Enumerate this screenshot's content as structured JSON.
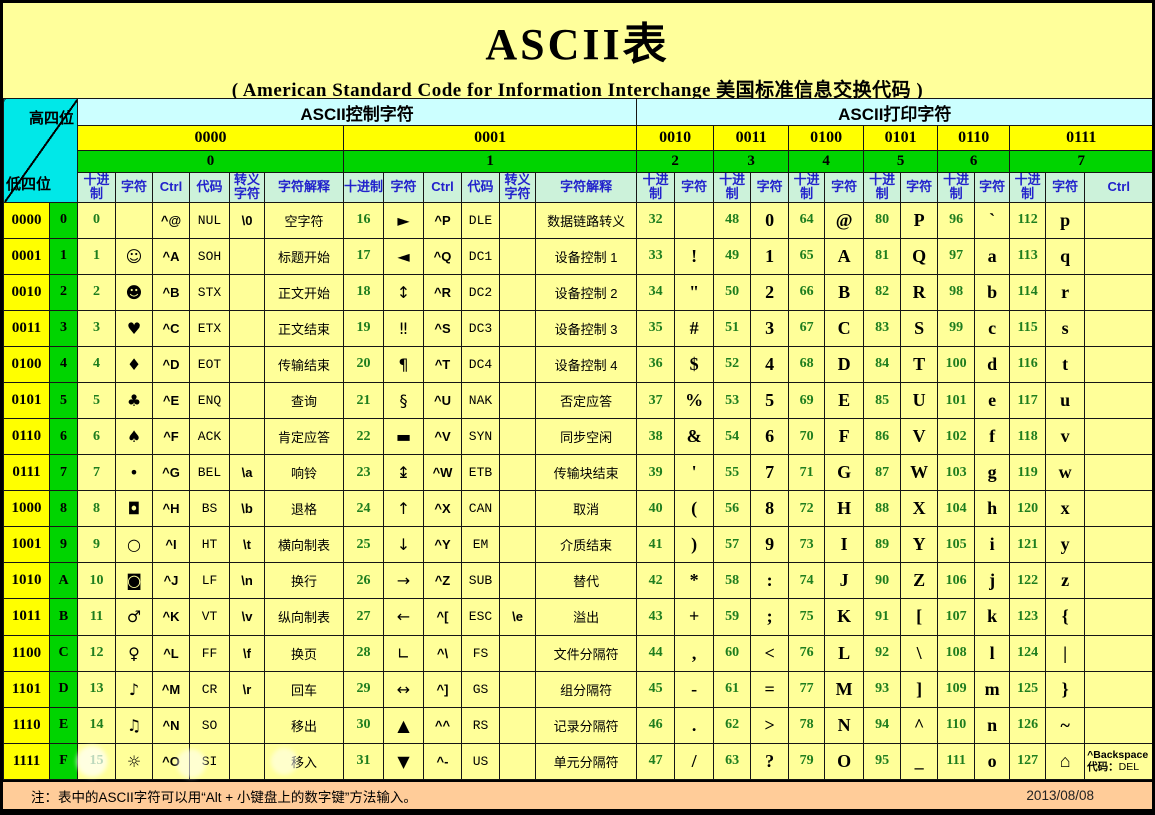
{
  "title": "ASCII表",
  "subtitle": "( American Standard Code for Information Interchange  美国标准信息交换代码 )",
  "corner": {
    "top": "高四位",
    "bottom": "低四位"
  },
  "sections": {
    "control": "ASCII控制字符",
    "print": "ASCII打印字符"
  },
  "high": [
    {
      "bin": "0000",
      "dec": "0"
    },
    {
      "bin": "0001",
      "dec": "1"
    },
    {
      "bin": "0010",
      "dec": "2"
    },
    {
      "bin": "0011",
      "dec": "3"
    },
    {
      "bin": "0100",
      "dec": "4"
    },
    {
      "bin": "0101",
      "dec": "5"
    },
    {
      "bin": "0110",
      "dec": "6"
    },
    {
      "bin": "0111",
      "dec": "7"
    }
  ],
  "col_headers": {
    "dec": "十进制",
    "char": "字符",
    "ctrl": "Ctrl",
    "code": "代码",
    "esc": "转义字符",
    "desc": "字符解释"
  },
  "rows": [
    {
      "bin": "0000",
      "hex": "0",
      "g0": {
        "dec": "0",
        "char": "",
        "ctrl": "^@",
        "code": "NUL",
        "esc": "\\0",
        "desc": "空字符"
      },
      "g1": {
        "dec": "16",
        "char": "►",
        "ctrl": "^P",
        "code": "DLE",
        "esc": "",
        "desc": "数据链路转义"
      },
      "p": [
        {
          "dec": "32",
          "char": ""
        },
        {
          "dec": "48",
          "char": "0"
        },
        {
          "dec": "64",
          "char": "@"
        },
        {
          "dec": "80",
          "char": "P"
        },
        {
          "dec": "96",
          "char": "`"
        },
        {
          "dec": "112",
          "char": "p"
        }
      ]
    },
    {
      "bin": "0001",
      "hex": "1",
      "g0": {
        "dec": "1",
        "char": "☺",
        "ctrl": "^A",
        "code": "SOH",
        "esc": "",
        "desc": "标题开始"
      },
      "g1": {
        "dec": "17",
        "char": "◄",
        "ctrl": "^Q",
        "code": "DC1",
        "esc": "",
        "desc": "设备控制 1"
      },
      "p": [
        {
          "dec": "33",
          "char": "!"
        },
        {
          "dec": "49",
          "char": "1"
        },
        {
          "dec": "65",
          "char": "A"
        },
        {
          "dec": "81",
          "char": "Q"
        },
        {
          "dec": "97",
          "char": "a"
        },
        {
          "dec": "113",
          "char": "q"
        }
      ]
    },
    {
      "bin": "0010",
      "hex": "2",
      "g0": {
        "dec": "2",
        "char": "☻",
        "ctrl": "^B",
        "code": "STX",
        "esc": "",
        "desc": "正文开始"
      },
      "g1": {
        "dec": "18",
        "char": "↕",
        "ctrl": "^R",
        "code": "DC2",
        "esc": "",
        "desc": "设备控制 2"
      },
      "p": [
        {
          "dec": "34",
          "char": "\""
        },
        {
          "dec": "50",
          "char": "2"
        },
        {
          "dec": "66",
          "char": "B"
        },
        {
          "dec": "82",
          "char": "R"
        },
        {
          "dec": "98",
          "char": "b"
        },
        {
          "dec": "114",
          "char": "r"
        }
      ]
    },
    {
      "bin": "0011",
      "hex": "3",
      "g0": {
        "dec": "3",
        "char": "♥",
        "ctrl": "^C",
        "code": "ETX",
        "esc": "",
        "desc": "正文结束"
      },
      "g1": {
        "dec": "19",
        "char": "‼",
        "ctrl": "^S",
        "code": "DC3",
        "esc": "",
        "desc": "设备控制 3"
      },
      "p": [
        {
          "dec": "35",
          "char": "#"
        },
        {
          "dec": "51",
          "char": "3"
        },
        {
          "dec": "67",
          "char": "C"
        },
        {
          "dec": "83",
          "char": "S"
        },
        {
          "dec": "99",
          "char": "c"
        },
        {
          "dec": "115",
          "char": "s"
        }
      ]
    },
    {
      "bin": "0100",
      "hex": "4",
      "g0": {
        "dec": "4",
        "char": "♦",
        "ctrl": "^D",
        "code": "EOT",
        "esc": "",
        "desc": "传输结束"
      },
      "g1": {
        "dec": "20",
        "char": "¶",
        "ctrl": "^T",
        "code": "DC4",
        "esc": "",
        "desc": "设备控制 4"
      },
      "p": [
        {
          "dec": "36",
          "char": "$"
        },
        {
          "dec": "52",
          "char": "4"
        },
        {
          "dec": "68",
          "char": "D"
        },
        {
          "dec": "84",
          "char": "T"
        },
        {
          "dec": "100",
          "char": "d"
        },
        {
          "dec": "116",
          "char": "t"
        }
      ]
    },
    {
      "bin": "0101",
      "hex": "5",
      "g0": {
        "dec": "5",
        "char": "♣",
        "ctrl": "^E",
        "code": "ENQ",
        "esc": "",
        "desc": "查询"
      },
      "g1": {
        "dec": "21",
        "char": "§",
        "ctrl": "^U",
        "code": "NAK",
        "esc": "",
        "desc": "否定应答"
      },
      "p": [
        {
          "dec": "37",
          "char": "%"
        },
        {
          "dec": "53",
          "char": "5"
        },
        {
          "dec": "69",
          "char": "E"
        },
        {
          "dec": "85",
          "char": "U"
        },
        {
          "dec": "101",
          "char": "e"
        },
        {
          "dec": "117",
          "char": "u"
        }
      ]
    },
    {
      "bin": "0110",
      "hex": "6",
      "g0": {
        "dec": "6",
        "char": "♠",
        "ctrl": "^F",
        "code": "ACK",
        "esc": "",
        "desc": "肯定应答"
      },
      "g1": {
        "dec": "22",
        "char": "▬",
        "ctrl": "^V",
        "code": "SYN",
        "esc": "",
        "desc": "同步空闲"
      },
      "p": [
        {
          "dec": "38",
          "char": "&"
        },
        {
          "dec": "54",
          "char": "6"
        },
        {
          "dec": "70",
          "char": "F"
        },
        {
          "dec": "86",
          "char": "V"
        },
        {
          "dec": "102",
          "char": "f"
        },
        {
          "dec": "118",
          "char": "v"
        }
      ]
    },
    {
      "bin": "0111",
      "hex": "7",
      "g0": {
        "dec": "7",
        "char": "•",
        "ctrl": "^G",
        "code": "BEL",
        "esc": "\\a",
        "desc": "响铃"
      },
      "g1": {
        "dec": "23",
        "char": "↨",
        "ctrl": "^W",
        "code": "ETB",
        "esc": "",
        "desc": "传输块结束"
      },
      "p": [
        {
          "dec": "39",
          "char": "'"
        },
        {
          "dec": "55",
          "char": "7"
        },
        {
          "dec": "71",
          "char": "G"
        },
        {
          "dec": "87",
          "char": "W"
        },
        {
          "dec": "103",
          "char": "g"
        },
        {
          "dec": "119",
          "char": "w"
        }
      ]
    },
    {
      "bin": "1000",
      "hex": "8",
      "g0": {
        "dec": "8",
        "char": "◘",
        "ctrl": "^H",
        "code": "BS",
        "esc": "\\b",
        "desc": "退格"
      },
      "g1": {
        "dec": "24",
        "char": "↑",
        "ctrl": "^X",
        "code": "CAN",
        "esc": "",
        "desc": "取消"
      },
      "p": [
        {
          "dec": "40",
          "char": "("
        },
        {
          "dec": "56",
          "char": "8"
        },
        {
          "dec": "72",
          "char": "H"
        },
        {
          "dec": "88",
          "char": "X"
        },
        {
          "dec": "104",
          "char": "h"
        },
        {
          "dec": "120",
          "char": "x"
        }
      ]
    },
    {
      "bin": "1001",
      "hex": "9",
      "g0": {
        "dec": "9",
        "char": "○",
        "ctrl": "^I",
        "code": "HT",
        "esc": "\\t",
        "desc": "横向制表"
      },
      "g1": {
        "dec": "25",
        "char": "↓",
        "ctrl": "^Y",
        "code": "EM",
        "esc": "",
        "desc": "介质结束"
      },
      "p": [
        {
          "dec": "41",
          "char": ")"
        },
        {
          "dec": "57",
          "char": "9"
        },
        {
          "dec": "73",
          "char": "I"
        },
        {
          "dec": "89",
          "char": "Y"
        },
        {
          "dec": "105",
          "char": "i"
        },
        {
          "dec": "121",
          "char": "y"
        }
      ]
    },
    {
      "bin": "1010",
      "hex": "A",
      "g0": {
        "dec": "10",
        "char": "◙",
        "ctrl": "^J",
        "code": "LF",
        "esc": "\\n",
        "desc": "换行"
      },
      "g1": {
        "dec": "26",
        "char": "→",
        "ctrl": "^Z",
        "code": "SUB",
        "esc": "",
        "desc": "替代"
      },
      "p": [
        {
          "dec": "42",
          "char": "*"
        },
        {
          "dec": "58",
          "char": ":"
        },
        {
          "dec": "74",
          "char": "J"
        },
        {
          "dec": "90",
          "char": "Z"
        },
        {
          "dec": "106",
          "char": "j"
        },
        {
          "dec": "122",
          "char": "z"
        }
      ]
    },
    {
      "bin": "1011",
      "hex": "B",
      "g0": {
        "dec": "11",
        "char": "♂",
        "ctrl": "^K",
        "code": "VT",
        "esc": "\\v",
        "desc": "纵向制表"
      },
      "g1": {
        "dec": "27",
        "char": "←",
        "ctrl": "^[",
        "code": "ESC",
        "esc": "\\e",
        "desc": "溢出"
      },
      "p": [
        {
          "dec": "43",
          "char": "+"
        },
        {
          "dec": "59",
          "char": ";"
        },
        {
          "dec": "75",
          "char": "K"
        },
        {
          "dec": "91",
          "char": "["
        },
        {
          "dec": "107",
          "char": "k"
        },
        {
          "dec": "123",
          "char": "{"
        }
      ]
    },
    {
      "bin": "1100",
      "hex": "C",
      "g0": {
        "dec": "12",
        "char": "♀",
        "ctrl": "^L",
        "code": "FF",
        "esc": "\\f",
        "desc": "换页"
      },
      "g1": {
        "dec": "28",
        "char": "∟",
        "ctrl": "^\\",
        "code": "FS",
        "esc": "",
        "desc": "文件分隔符"
      },
      "p": [
        {
          "dec": "44",
          "char": ","
        },
        {
          "dec": "60",
          "char": "<"
        },
        {
          "dec": "76",
          "char": "L"
        },
        {
          "dec": "92",
          "char": "\\"
        },
        {
          "dec": "108",
          "char": "l"
        },
        {
          "dec": "124",
          "char": "|"
        }
      ]
    },
    {
      "bin": "1101",
      "hex": "D",
      "g0": {
        "dec": "13",
        "char": "♪",
        "ctrl": "^M",
        "code": "CR",
        "esc": "\\r",
        "desc": "回车"
      },
      "g1": {
        "dec": "29",
        "char": "↔",
        "ctrl": "^]",
        "code": "GS",
        "esc": "",
        "desc": "组分隔符"
      },
      "p": [
        {
          "dec": "45",
          "char": "-"
        },
        {
          "dec": "61",
          "char": "="
        },
        {
          "dec": "77",
          "char": "M"
        },
        {
          "dec": "93",
          "char": "]"
        },
        {
          "dec": "109",
          "char": "m"
        },
        {
          "dec": "125",
          "char": "}"
        }
      ]
    },
    {
      "bin": "1110",
      "hex": "E",
      "g0": {
        "dec": "14",
        "char": "♫",
        "ctrl": "^N",
        "code": "SO",
        "esc": "",
        "desc": "移出"
      },
      "g1": {
        "dec": "30",
        "char": "▲",
        "ctrl": "^^",
        "code": "RS",
        "esc": "",
        "desc": "记录分隔符"
      },
      "p": [
        {
          "dec": "46",
          "char": "."
        },
        {
          "dec": "62",
          "char": ">"
        },
        {
          "dec": "78",
          "char": "N"
        },
        {
          "dec": "94",
          "char": "^"
        },
        {
          "dec": "110",
          "char": "n"
        },
        {
          "dec": "126",
          "char": "~"
        }
      ]
    },
    {
      "bin": "1111",
      "hex": "F",
      "g0": {
        "dec": "15",
        "char": "☼",
        "ctrl": "^O",
        "code": "SI",
        "esc": "",
        "desc": "移入"
      },
      "g1": {
        "dec": "31",
        "char": "▼",
        "ctrl": "^-",
        "code": "US",
        "esc": "",
        "desc": "单元分隔符"
      },
      "p": [
        {
          "dec": "47",
          "char": "/"
        },
        {
          "dec": "63",
          "char": "?"
        },
        {
          "dec": "79",
          "char": "O"
        },
        {
          "dec": "95",
          "char": "_"
        },
        {
          "dec": "111",
          "char": "o"
        },
        {
          "dec": "127",
          "char": "⌂"
        }
      ]
    }
  ],
  "del_note": {
    "line1": "^Backspace",
    "label": "代码：",
    "value": "DEL"
  },
  "footer": {
    "note": "注：表中的ASCII字符可以用“Alt + 小键盘上的数字键”方法输入。",
    "date": "2013/08/08"
  },
  "colors": {
    "page_bg": "#FFFF9B",
    "cell_bg": "#FFFF99",
    "bright_yellow": "#FFFF00",
    "bright_green": "#00D400",
    "pale_cyan": "#CCFFFF",
    "pale_mint": "#CCF2DA",
    "corner_cyan": "#00E8E8",
    "header_blue": "#2222CC",
    "dec_green": "#1E7D1E",
    "footer_bg": "#FFCC99"
  }
}
